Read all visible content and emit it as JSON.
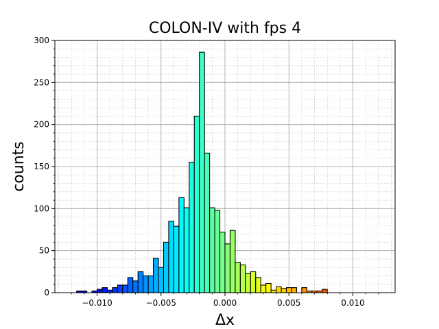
{
  "chart_data": {
    "type": "bar",
    "title": "COLON-IV with fps 4",
    "xlabel": "Δx",
    "ylabel": "counts",
    "xlim": [
      -0.0133,
      0.0133
    ],
    "ylim": [
      0,
      300
    ],
    "bin_width": 0.0004,
    "grid": true,
    "colormap": "jet",
    "bar_edge_color": "#000000",
    "x_ticks": [
      -0.01,
      -0.005,
      0.0,
      0.005,
      0.01
    ],
    "x_tick_labels": [
      "−0.010",
      "−0.005",
      "0.000",
      "0.005",
      "0.010"
    ],
    "y_ticks": [
      0,
      50,
      100,
      150,
      200,
      250,
      300
    ],
    "y_tick_labels": [
      "0",
      "50",
      "100",
      "150",
      "200",
      "250",
      "300"
    ],
    "bins": [
      {
        "x": -0.0114,
        "count": 2
      },
      {
        "x": -0.011,
        "count": 2
      },
      {
        "x": -0.0102,
        "count": 2
      },
      {
        "x": -0.0098,
        "count": 4
      },
      {
        "x": -0.0094,
        "count": 6
      },
      {
        "x": -0.009,
        "count": 3
      },
      {
        "x": -0.0086,
        "count": 6
      },
      {
        "x": -0.0082,
        "count": 9
      },
      {
        "x": -0.0078,
        "count": 9
      },
      {
        "x": -0.0074,
        "count": 18
      },
      {
        "x": -0.007,
        "count": 14
      },
      {
        "x": -0.0066,
        "count": 25
      },
      {
        "x": -0.0062,
        "count": 20
      },
      {
        "x": -0.0058,
        "count": 20
      },
      {
        "x": -0.0054,
        "count": 41
      },
      {
        "x": -0.005,
        "count": 30
      },
      {
        "x": -0.0046,
        "count": 60
      },
      {
        "x": -0.0042,
        "count": 85
      },
      {
        "x": -0.0038,
        "count": 79
      },
      {
        "x": -0.0034,
        "count": 113
      },
      {
        "x": -0.003,
        "count": 101
      },
      {
        "x": -0.0026,
        "count": 155
      },
      {
        "x": -0.0022,
        "count": 210
      },
      {
        "x": -0.0018,
        "count": 286
      },
      {
        "x": -0.0014,
        "count": 166
      },
      {
        "x": -0.001,
        "count": 101
      },
      {
        "x": -0.0006,
        "count": 98
      },
      {
        "x": -0.0002,
        "count": 72
      },
      {
        "x": 0.0002,
        "count": 58
      },
      {
        "x": 0.0006,
        "count": 74
      },
      {
        "x": 0.001,
        "count": 36
      },
      {
        "x": 0.0014,
        "count": 33
      },
      {
        "x": 0.0018,
        "count": 23
      },
      {
        "x": 0.0022,
        "count": 25
      },
      {
        "x": 0.0026,
        "count": 18
      },
      {
        "x": 0.003,
        "count": 9
      },
      {
        "x": 0.0034,
        "count": 11
      },
      {
        "x": 0.0038,
        "count": 3
      },
      {
        "x": 0.0042,
        "count": 7
      },
      {
        "x": 0.0046,
        "count": 5
      },
      {
        "x": 0.005,
        "count": 6
      },
      {
        "x": 0.0054,
        "count": 6
      },
      {
        "x": 0.0062,
        "count": 6
      },
      {
        "x": 0.0066,
        "count": 2
      },
      {
        "x": 0.007,
        "count": 2
      },
      {
        "x": 0.0074,
        "count": 2
      },
      {
        "x": 0.0078,
        "count": 4
      }
    ]
  }
}
